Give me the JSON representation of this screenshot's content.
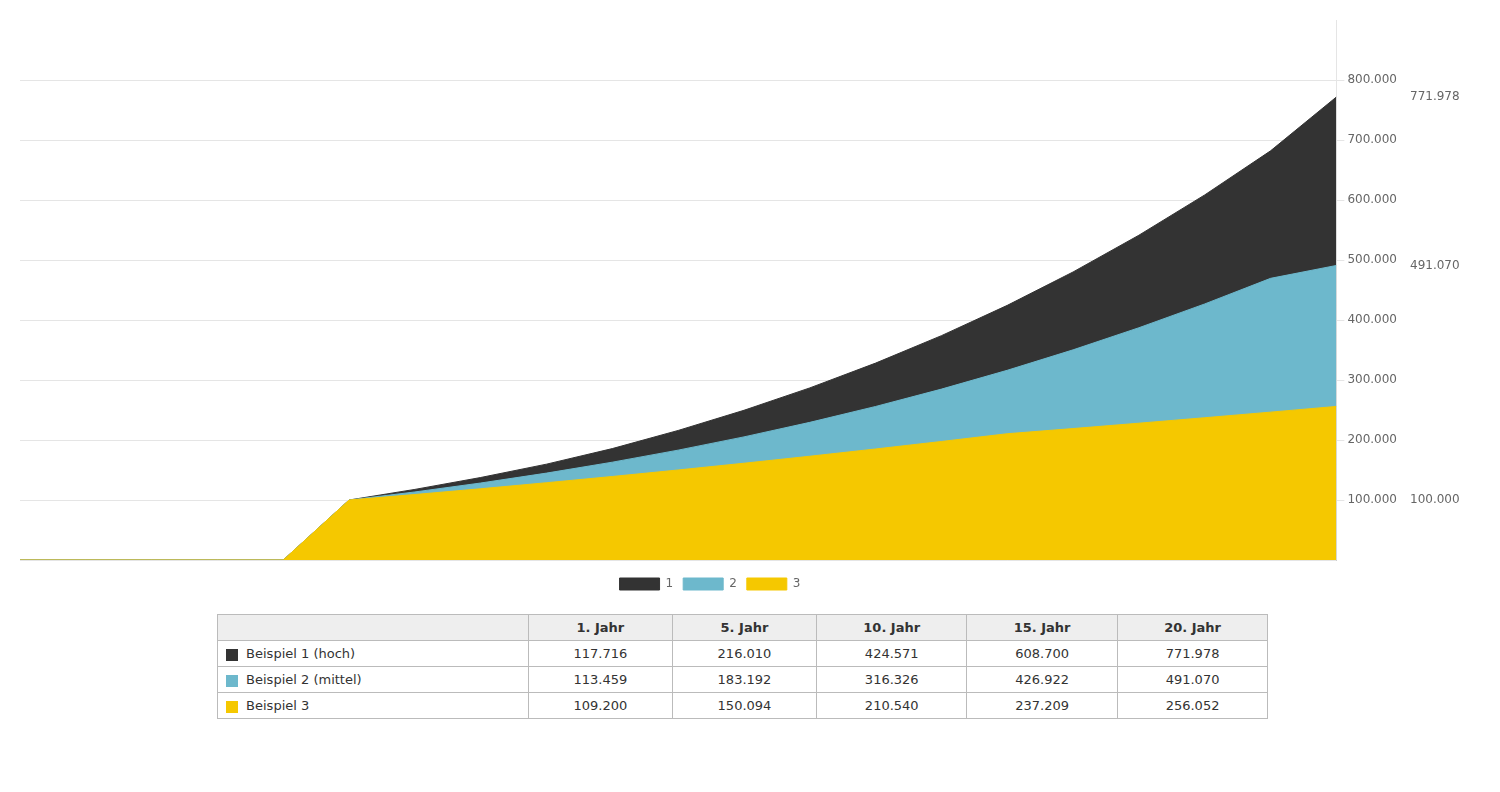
{
  "chart_data": {
    "type": "area",
    "x": [
      0,
      1,
      2,
      3,
      4,
      5,
      6,
      7,
      8,
      9,
      10,
      11,
      12,
      13,
      14,
      15,
      16,
      17,
      18,
      19,
      20
    ],
    "series": [
      {
        "name": "1",
        "color": "#333333",
        "values": [
          0,
          0,
          0,
          0,
          0,
          100000,
          117716,
          137566,
          159822,
          185783,
          216010,
          249627,
          286954,
          328321,
          374070,
          424571,
          480265,
          541517,
          608700,
          682191,
          771978
        ]
      },
      {
        "name": "2",
        "color": "#6db8cc",
        "values": [
          0,
          0,
          0,
          0,
          0,
          100000,
          113459,
          128378,
          144883,
          163107,
          183192,
          205280,
          229505,
          256001,
          284900,
          316326,
          350398,
          387227,
          426922,
          469592,
          491070
        ]
      },
      {
        "name": "3",
        "color": "#f5c800",
        "values": [
          0,
          0,
          0,
          0,
          0,
          100000,
          109200,
          118808,
          128824,
          139253,
          150094,
          161350,
          173021,
          185108,
          197614,
          210540,
          219160,
          228087,
          237209,
          246530,
          256052
        ]
      }
    ],
    "xlim": [
      0,
      20
    ],
    "ylim": [
      0,
      900000
    ],
    "yticks": [
      {
        "value": 100000,
        "label": "100.000"
      },
      {
        "value": 200000,
        "label": "200.000"
      },
      {
        "value": 300000,
        "label": "300.000"
      },
      {
        "value": 400000,
        "label": "400.000"
      },
      {
        "value": 500000,
        "label": "500.000"
      },
      {
        "value": 600000,
        "label": "600.000"
      },
      {
        "value": 700000,
        "label": "700.000"
      },
      {
        "value": 800000,
        "label": "800.000"
      }
    ],
    "grid": true,
    "legend": "bottom",
    "tick_labels": "y",
    "annotations": [
      {
        "text": "771.978",
        "y": 771978
      },
      {
        "text": "491.070",
        "y": 491070
      },
      {
        "text": "100.000",
        "y": 100000
      }
    ],
    "table": {
      "header": [
        "1. Jahr",
        "5. Jahr",
        "10. Jahr",
        "15. Jahr",
        "20. Jahr"
      ],
      "rows": [
        {
          "label": "Beispiel 1 (hoch)",
          "color": "#333333",
          "values": [
            117716,
            216010,
            424571,
            608700,
            771978
          ],
          "value_labels": [
            "117.716",
            "216.010",
            "424.571",
            "608.700",
            "771.978"
          ]
        },
        {
          "label": "Beispiel 2 (mittel)",
          "color": "#6db8cc",
          "values": [
            113459,
            183192,
            316326,
            426922,
            491070
          ],
          "value_labels": [
            "113.459",
            "183.192",
            "316.326",
            "426.922",
            "491.070"
          ]
        },
        {
          "label": "Beispiel 3",
          "color": "#f5c800",
          "values": [
            109200,
            150094,
            210540,
            237209,
            256052
          ],
          "value_labels": [
            "109.200",
            "150.094",
            "210.540",
            "237.209",
            "256.052"
          ]
        }
      ]
    }
  }
}
